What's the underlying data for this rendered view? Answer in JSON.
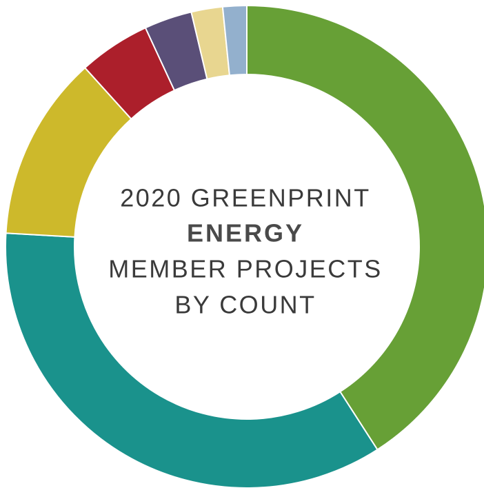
{
  "chart_data": {
    "type": "pie",
    "donut": true,
    "title_lines": [
      "2020 GREENPRINT",
      "ENERGY",
      "MEMBER PROJECTS",
      "BY COUNT"
    ],
    "values": [
      40.9,
      35,
      12.4,
      4.8,
      3.2,
      2.1,
      1.6
    ],
    "colors": [
      "#67a036",
      "#1a928c",
      "#cdb92b",
      "#ac1f2b",
      "#5a4f78",
      "#e8d690",
      "#93b0cd"
    ]
  }
}
